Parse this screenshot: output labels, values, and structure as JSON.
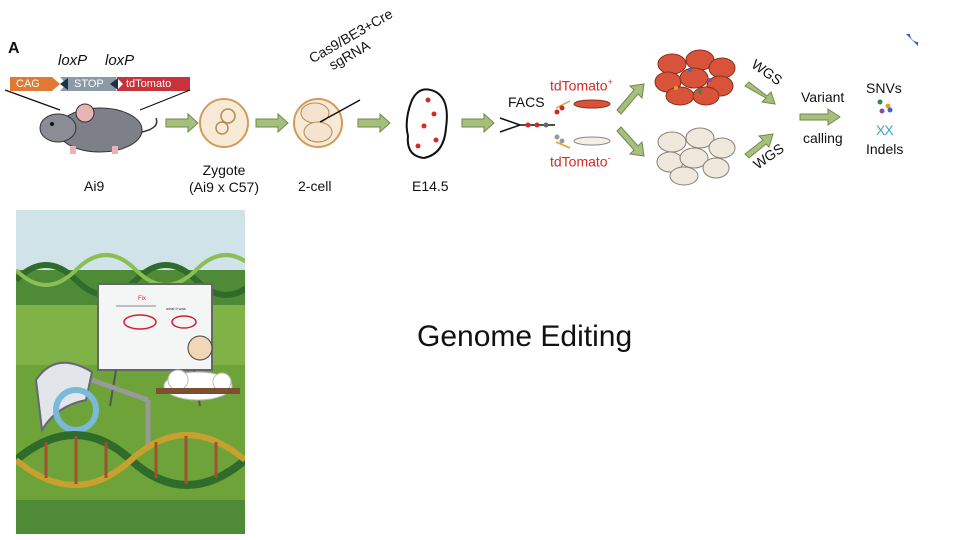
{
  "panel": {
    "letter": "A"
  },
  "construct": {
    "loxp_left": "loxP",
    "loxp_right": "loxP",
    "segments": [
      "CAG",
      "STOP",
      "tdTomato"
    ]
  },
  "stages": {
    "mouse": "Ai9",
    "zygote_line1": "Zygote",
    "zygote_line2": "(Ai9 x C57)",
    "two_cell": "2-cell",
    "embryo": "E14.5"
  },
  "injection": {
    "line1": "Cas9/BE3+Cre",
    "line2": "sgRNA"
  },
  "sorting": {
    "facs": "FACS",
    "positive": "tdTomato",
    "positive_sup": "+",
    "negative": "tdTomato",
    "negative_sup": "-"
  },
  "sequencing": {
    "wgs_top": "WGS",
    "wgs_bottom": "WGS"
  },
  "analysis": {
    "variant": "Variant",
    "calling": "calling",
    "snvs": "SNVs",
    "xx": "XX",
    "indels": "Indels"
  },
  "slide": {
    "title": "Genome Editing"
  },
  "illustration": {
    "board_text_1": "Fix",
    "board_text_2": "what it was"
  },
  "colors": {
    "arrow": "#a7bf7e",
    "tomato": "#d42a22",
    "cag": "#e07a32",
    "stop": "#8a9aa6",
    "cover_sky": "#cfe3e8",
    "cover_grass": "#6ea33a"
  }
}
